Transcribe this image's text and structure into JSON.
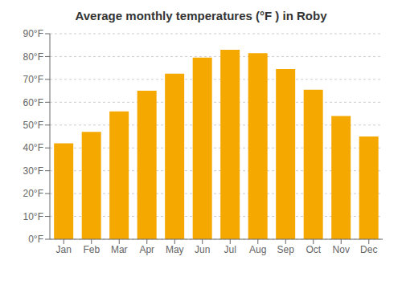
{
  "chart_data": {
    "type": "bar",
    "title": "Average monthly temperatures (°F ) in Roby",
    "categories": [
      "Jan",
      "Feb",
      "Mar",
      "Apr",
      "May",
      "Jun",
      "Jul",
      "Aug",
      "Sep",
      "Oct",
      "Nov",
      "Dec"
    ],
    "values": [
      42,
      47,
      56,
      65,
      72.5,
      79.5,
      83,
      81.5,
      74.5,
      65.5,
      54,
      45
    ],
    "color": "#F5A800",
    "ylim": [
      0,
      90
    ],
    "yticks": [
      {
        "value": 0,
        "label": "0°F"
      },
      {
        "value": 10,
        "label": "10°F"
      },
      {
        "value": 20,
        "label": "20°F"
      },
      {
        "value": 30,
        "label": "30°F"
      },
      {
        "value": 40,
        "label": "40°F"
      },
      {
        "value": 50,
        "label": "50°F"
      },
      {
        "value": 60,
        "label": "60°F"
      },
      {
        "value": 70,
        "label": "70°F"
      },
      {
        "value": 80,
        "label": "80°F"
      },
      {
        "value": 90,
        "label": "90°F"
      }
    ],
    "grid": true
  }
}
